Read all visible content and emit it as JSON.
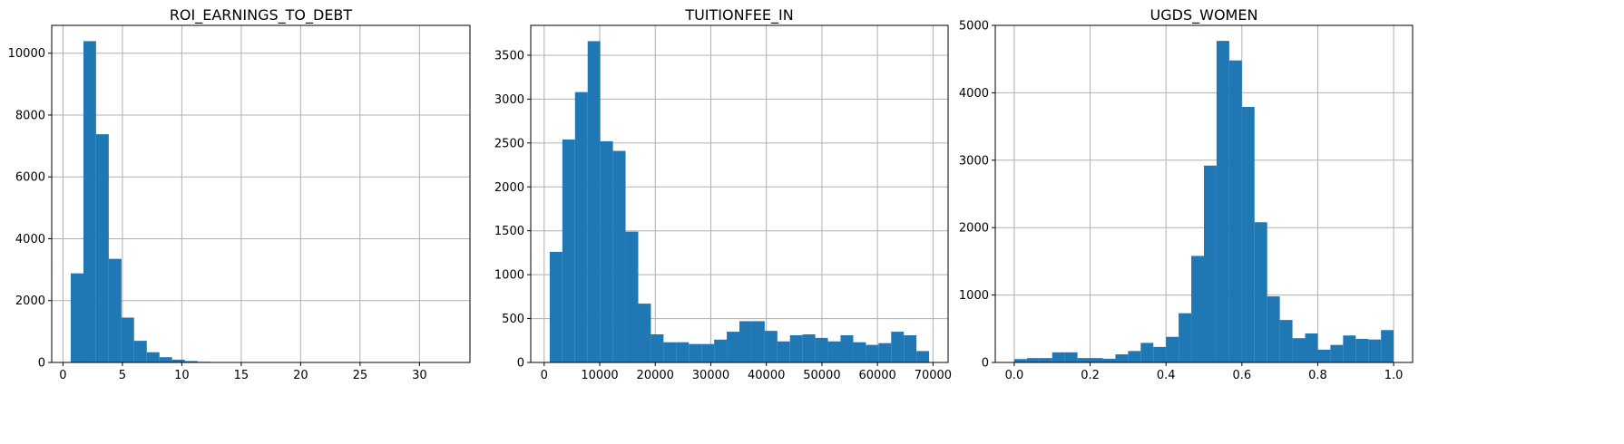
{
  "figure": {
    "background": "#ffffff",
    "bar_color": "#1f77b4"
  },
  "chart_data": [
    {
      "type": "bar",
      "title": "ROI_EARNINGS_TO_DEBT",
      "bin_edges": [
        0.65,
        1.72,
        2.78,
        3.85,
        4.92,
        5.98,
        7.05,
        8.12,
        9.18,
        10.25,
        11.32,
        12.38,
        13.45,
        14.52,
        15.58,
        16.65,
        17.72,
        18.78,
        19.85,
        20.92,
        21.98,
        23.05,
        24.12,
        25.18,
        26.25,
        27.32,
        28.38,
        29.45,
        30.52,
        31.58,
        32.65
      ],
      "values": [
        2880,
        10390,
        7380,
        3350,
        1450,
        700,
        330,
        170,
        90,
        45,
        20,
        8,
        3,
        2,
        1,
        1,
        0,
        0,
        0,
        0,
        0,
        0,
        0,
        0,
        0,
        0,
        0,
        0,
        0,
        1
      ],
      "xlim": [
        -0.95,
        34.25
      ],
      "ylim": [
        0,
        10900
      ],
      "xticks": [
        0,
        5,
        10,
        15,
        20,
        25,
        30
      ],
      "xtick_labels": [
        "0",
        "5",
        "10",
        "15",
        "20",
        "25",
        "30"
      ],
      "yticks": [
        0,
        2000,
        4000,
        6000,
        8000,
        10000
      ],
      "ytick_labels": [
        "0",
        "2000",
        "4000",
        "6000",
        "8000",
        "10000"
      ],
      "grid": true,
      "xlabel": "",
      "ylabel": ""
    },
    {
      "type": "bar",
      "title": "TUITIONFEE_IN",
      "bin_edges": [
        1000,
        3277,
        5553,
        7830,
        10107,
        12383,
        14660,
        16937,
        19213,
        21490,
        23767,
        26043,
        28320,
        30597,
        32873,
        35150,
        37427,
        39703,
        41980,
        44257,
        46533,
        48810,
        51087,
        53363,
        55640,
        57917,
        60193,
        62470,
        64747,
        67023,
        69300
      ],
      "values": [
        1260,
        2540,
        3080,
        3660,
        2520,
        2410,
        1490,
        670,
        320,
        230,
        230,
        210,
        210,
        260,
        350,
        470,
        470,
        360,
        240,
        310,
        320,
        280,
        240,
        310,
        230,
        200,
        220,
        350,
        310,
        130
      ],
      "xlim": [
        -2415,
        72715
      ],
      "ylim": [
        0,
        3840
      ],
      "xticks": [
        0,
        10000,
        20000,
        30000,
        40000,
        50000,
        60000,
        70000
      ],
      "xtick_labels": [
        "0",
        "10000",
        "20000",
        "30000",
        "40000",
        "50000",
        "60000",
        "70000"
      ],
      "yticks": [
        0,
        500,
        1000,
        1500,
        2000,
        2500,
        3000,
        3500
      ],
      "ytick_labels": [
        "0",
        "500",
        "1000",
        "1500",
        "2000",
        "2500",
        "3000",
        "3500"
      ],
      "grid": true,
      "xlabel": "",
      "ylabel": ""
    },
    {
      "type": "bar",
      "title": "UGDS_WOMEN",
      "bin_edges": [
        0.0,
        0.0333,
        0.0667,
        0.1,
        0.1333,
        0.1667,
        0.2,
        0.2333,
        0.2667,
        0.3,
        0.3333,
        0.3667,
        0.4,
        0.4333,
        0.4667,
        0.5,
        0.5333,
        0.5667,
        0.6,
        0.6333,
        0.6667,
        0.7,
        0.7333,
        0.7667,
        0.8,
        0.8333,
        0.8667,
        0.9,
        0.9333,
        0.9667,
        1.0
      ],
      "values": [
        50,
        65,
        65,
        150,
        150,
        65,
        65,
        55,
        120,
        170,
        290,
        230,
        380,
        730,
        1580,
        2920,
        4770,
        4480,
        3790,
        2080,
        980,
        630,
        360,
        430,
        190,
        260,
        400,
        350,
        340,
        480
      ],
      "xlim": [
        -0.05,
        1.05
      ],
      "ylim": [
        0,
        5000
      ],
      "xticks": [
        0.0,
        0.2,
        0.4,
        0.6,
        0.8,
        1.0
      ],
      "xtick_labels": [
        "0.0",
        "0.2",
        "0.4",
        "0.6",
        "0.8",
        "1.0"
      ],
      "yticks": [
        0,
        1000,
        2000,
        3000,
        4000,
        5000
      ],
      "ytick_labels": [
        "0",
        "1000",
        "2000",
        "3000",
        "4000",
        "5000"
      ],
      "grid": true,
      "xlabel": "",
      "ylabel": ""
    }
  ]
}
